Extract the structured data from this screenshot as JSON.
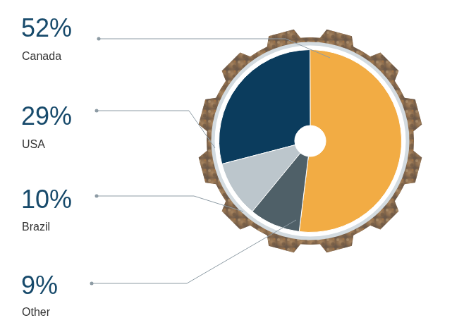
{
  "chart_data": {
    "type": "pie",
    "categories": [
      "Canada",
      "USA",
      "Brazil",
      "Other"
    ],
    "values": [
      52,
      29,
      10,
      9
    ],
    "value_labels": [
      "52%",
      "29%",
      "10%",
      "9%"
    ],
    "colors": [
      "#f2ac44",
      "#0b3c5d",
      "#bcc6cc",
      "#4f6068"
    ],
    "data_labels": true
  }
}
